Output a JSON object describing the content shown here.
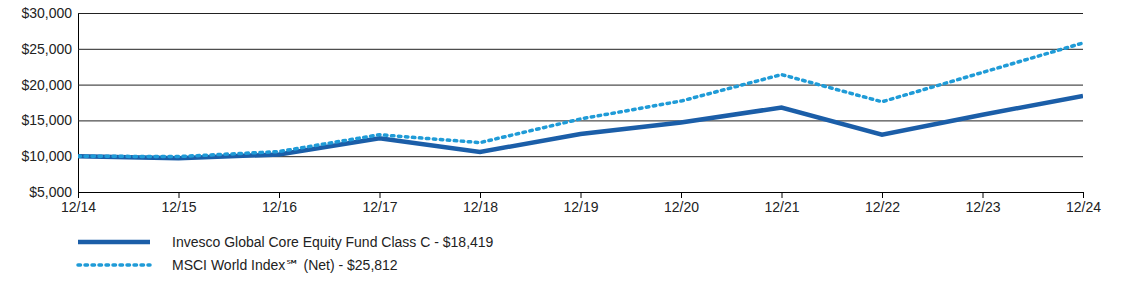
{
  "chart_data": {
    "type": "line",
    "categories": [
      "12/14",
      "12/15",
      "12/16",
      "12/17",
      "12/18",
      "12/19",
      "12/20",
      "12/21",
      "12/22",
      "12/23",
      "12/24"
    ],
    "series": [
      {
        "name": "Invesco Global Core Equity Fund Class C - $18,419",
        "color": "#1b5ea8",
        "line_style": "solid",
        "values": [
          10000,
          9700,
          10250,
          12500,
          10600,
          13100,
          14700,
          16800,
          13000,
          15800,
          18419
        ]
      },
      {
        "name": "MSCI World Index℠ (Net) - $25,812",
        "color": "#1f9bd7",
        "line_style": "dotted",
        "values": [
          10000,
          9950,
          10650,
          13000,
          11900,
          15200,
          17700,
          21400,
          17600,
          21700,
          25812
        ]
      }
    ],
    "ylim": [
      5000,
      30000
    ],
    "yticks": [
      {
        "value": 5000,
        "label": "$5,000"
      },
      {
        "value": 10000,
        "label": "$10,000"
      },
      {
        "value": 15000,
        "label": "$15,000"
      },
      {
        "value": 20000,
        "label": "$20,000"
      },
      {
        "value": 25000,
        "label": "$25,000"
      },
      {
        "value": 30000,
        "label": "$30,000"
      }
    ],
    "grid": true,
    "legend": "bottom-left"
  }
}
